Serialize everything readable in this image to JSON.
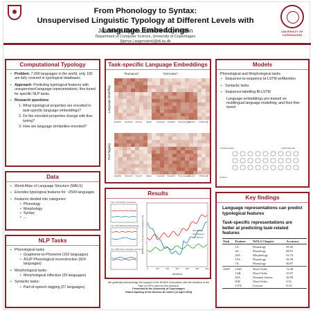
{
  "header": {
    "title_line1": "From Phonology to Syntax:",
    "title_line2": "Unsupervised Linguistic Typology at Different Levels with Language Embeddings",
    "authors": "Johannes Bjerva, Isabelle Augenstein",
    "dept": "Department of Computer Science, University of Copenhagen",
    "emails": "{bjerva | augenstein}@di.ku.dk",
    "university_line1": "UNIVERSITY OF",
    "university_line2": "COPENHAGEN"
  },
  "computational_typology": {
    "heading": "Computational Typology",
    "problem_label": "Problem",
    "problem_text": ": 7,000 languages in the world, only 100 are fully covered in typological databases.",
    "approach_label": "Approach",
    "approach_text": ": Predicting typological features with unsupervised language representations, fine-tuned for specific NLP tasks.",
    "questions_label": "Research questions",
    "questions_colon": ":",
    "questions": [
      "What typological properties are encoded in task-specific language embeddings?",
      "Do the encoded properties change with fine-tuning?",
      "How are language similarities encoded?"
    ]
  },
  "data_box": {
    "heading": "Data",
    "items": [
      "World Atlas of Language Structure (WALS)",
      "Encodes typological features for ~2500 languages",
      "Features divided into categories:"
    ],
    "categories": [
      "Phonology",
      "Morphology",
      "Syntax",
      "..."
    ]
  },
  "nlp_tasks": {
    "heading": "NLP Tasks",
    "phon_label": "Phonological tasks",
    "phon_items": [
      "Grapheme-to-Phoneme (102 languages)",
      "ASJP Phonological reconstruction (824 languages)"
    ],
    "asjp_bold": "ASJP",
    "morph_label": "Morphological tasks:",
    "morph_items": [
      "Morphological inflection (29 languages)"
    ],
    "syn_label": "Syntactic tasks:",
    "syn_items": [
      "Part-of-speech tagging (27 languages)"
    ]
  },
  "embeddings": {
    "heading": "Task-specific Language Embeddings",
    "romance": "\"Romance\"",
    "germanic": "\"Germanic\"",
    "lm_label": "Language Modelling",
    "pos_label": "PoS tagging",
    "languages": [
      "English",
      "Spanish",
      "French",
      "Italian",
      "Icelandic",
      "Swedish",
      "N.Norwegian",
      "Danish",
      "N.Bokmål"
    ]
  },
  "results": {
    "heading": "Results",
    "small1_title": "Sem. (9) Number of Genders",
    "small2_title": "Syn. (45) Inflectional Morphology",
    "small3_title": "Syn. (86) Order of Genitive and Noun",
    "ylabel": "Difference in Accuracy from Initialisation (%)",
    "xlabel": "Iterations",
    "x_ticks": [
      "0",
      "100",
      "200",
      "300",
      "400",
      "500",
      "600"
    ],
    "legend": [
      "Syntax",
      "Tagging",
      "Phonol."
    ],
    "colors": {
      "syntax": "#d62728",
      "tagging": "#1f77b4",
      "phonology": "#2ca02c"
    }
  },
  "acknowledgement": {
    "line1": "We gratefully acknowledge the support of the NVIDIA Corporation with the donation of the",
    "line2": "Titan Xp GPU used for this research.",
    "line3": "Presented at the University of Copenhagen",
    "line4": "Grand Opening of the Science AI Centre (12 April 2019)"
  },
  "models": {
    "heading": "Models",
    "intro": "Phonological and Morphological tasks",
    "items": [
      "Sequence-to-sequence bi-LSTM w/Attention",
      "Syntactic tasks",
      "Sequence-labelling Bi-LSTM"
    ],
    "pretrain": "Language embeddings pre-trained on multilingual language modelling, and then fine-tuned",
    "diagram_labels": [
      "LSTM Encoder",
      "LSTM Decoder",
      "Embed"
    ]
  },
  "key_findings": {
    "heading": "Key findings",
    "finding1": "Language representations can predict typological features",
    "finding2": "Task-specific representations are better at predicting task-related features",
    "table_headers": [
      "Task",
      "Feature",
      "WALS Chapter",
      "Accuracy"
    ],
    "task_label": "ASJP",
    "rows": [
      [
        "1A",
        "Phonology",
        "69.45"
      ],
      [
        "2A",
        "Phonology",
        "88.91"
      ],
      [
        "20A",
        "Morphology",
        "62.74"
      ],
      [
        "19A",
        "Phonology",
        "82.58"
      ],
      [
        "7A",
        "Phonology",
        "80.97"
      ],
      [
        "144A",
        "Word Order",
        "14.48"
      ],
      [
        "144L",
        "Word Order",
        "10.67"
      ],
      [
        "82A",
        "Nominal Syntax",
        "30.90"
      ],
      [
        "81B",
        "Word Order",
        "9.52"
      ],
      [
        "137A",
        "Lexicon",
        "8.18"
      ]
    ]
  }
}
